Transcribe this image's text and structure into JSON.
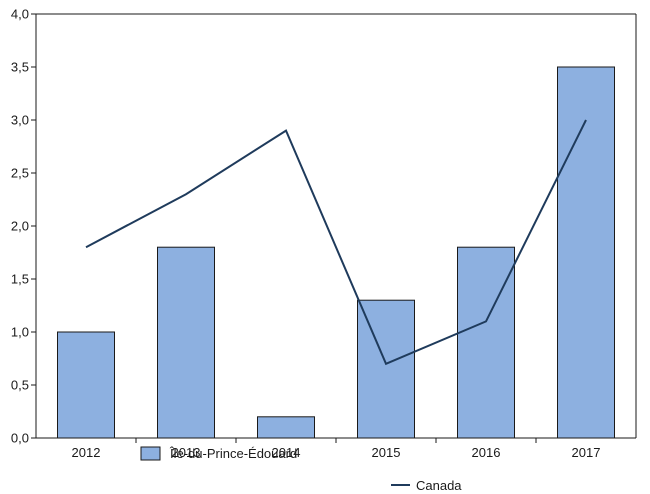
{
  "chart_data": {
    "type": "bar",
    "categories": [
      "2012",
      "2013",
      "2014",
      "2015",
      "2016",
      "2017"
    ],
    "series": [
      {
        "name": "Île-du-Prince-Édouard",
        "kind": "bar",
        "values": [
          1.0,
          1.8,
          0.2,
          1.3,
          1.8,
          3.5
        ],
        "color": "#8db0e0",
        "stroke": "#1a1a1a"
      },
      {
        "name": "Canada",
        "kind": "line",
        "values": [
          1.8,
          2.3,
          2.9,
          0.7,
          1.1,
          3.0
        ],
        "color": "#1f3b5c"
      }
    ],
    "yticks": [
      "0,0",
      "0,5",
      "1,0",
      "1,5",
      "2,0",
      "2,5",
      "3,0",
      "3,5",
      "4,0"
    ],
    "ylim": [
      0,
      4
    ],
    "grid": false,
    "legend_position": "bottom"
  }
}
